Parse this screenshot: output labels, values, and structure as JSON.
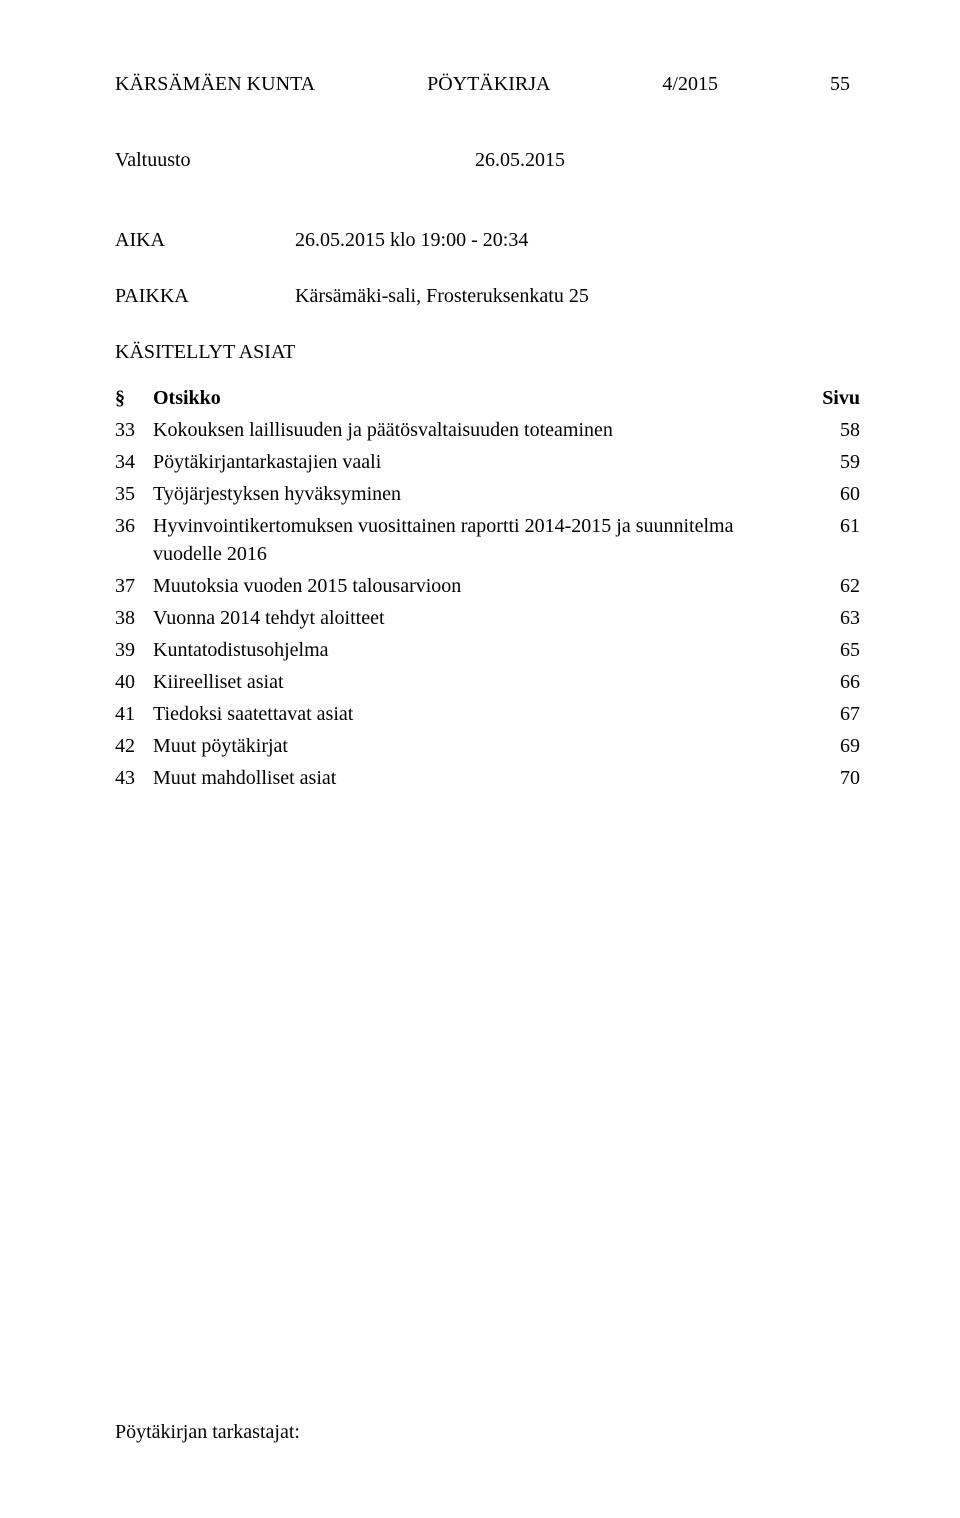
{
  "header": {
    "org": "KÄRSÄMÄEN KUNTA",
    "doc_type": "PÖYTÄKIRJA",
    "doc_num": "4/2015",
    "page_no": "55"
  },
  "subheader": {
    "body": "Valtuusto",
    "date": "26.05.2015"
  },
  "meta": {
    "aika_label": "AIKA",
    "aika_value": "26.05.2015 klo 19:00 - 20:34",
    "paikka_label": "PAIKKA",
    "paikka_value": "Kärsämäki-sali, Frosteruksenkatu 25"
  },
  "section_heading": "KÄSITELLYT ASIAT",
  "columns": {
    "sym": "§",
    "title": "Otsikko",
    "page": "Sivu"
  },
  "items": [
    {
      "num": "33",
      "title": "Kokouksen laillisuuden ja päätösvaltaisuuden toteaminen",
      "page": "58"
    },
    {
      "num": "34",
      "title": "Pöytäkirjantarkastajien vaali",
      "page": "59"
    },
    {
      "num": "35",
      "title": "Työjärjestyksen hyväksyminen",
      "page": "60"
    },
    {
      "num": "36",
      "title": "Hyvinvointikertomuksen vuosittainen raportti 2014-2015 ja suunnitelma vuodelle 2016",
      "page": "61"
    },
    {
      "num": "37",
      "title": "Muutoksia vuoden 2015 talousarvioon",
      "page": "62"
    },
    {
      "num": "38",
      "title": "Vuonna 2014 tehdyt aloitteet",
      "page": "63"
    },
    {
      "num": "39",
      "title": "Kuntatodistusohjelma",
      "page": "65"
    },
    {
      "num": "40",
      "title": "Kiireelliset asiat",
      "page": "66"
    },
    {
      "num": "41",
      "title": "Tiedoksi saatettavat asiat",
      "page": "67"
    },
    {
      "num": "42",
      "title": "Muut pöytäkirjat",
      "page": "69"
    },
    {
      "num": "43",
      "title": "Muut mahdolliset asiat",
      "page": "70"
    }
  ],
  "footer": "Pöytäkirjan tarkastajat:"
}
